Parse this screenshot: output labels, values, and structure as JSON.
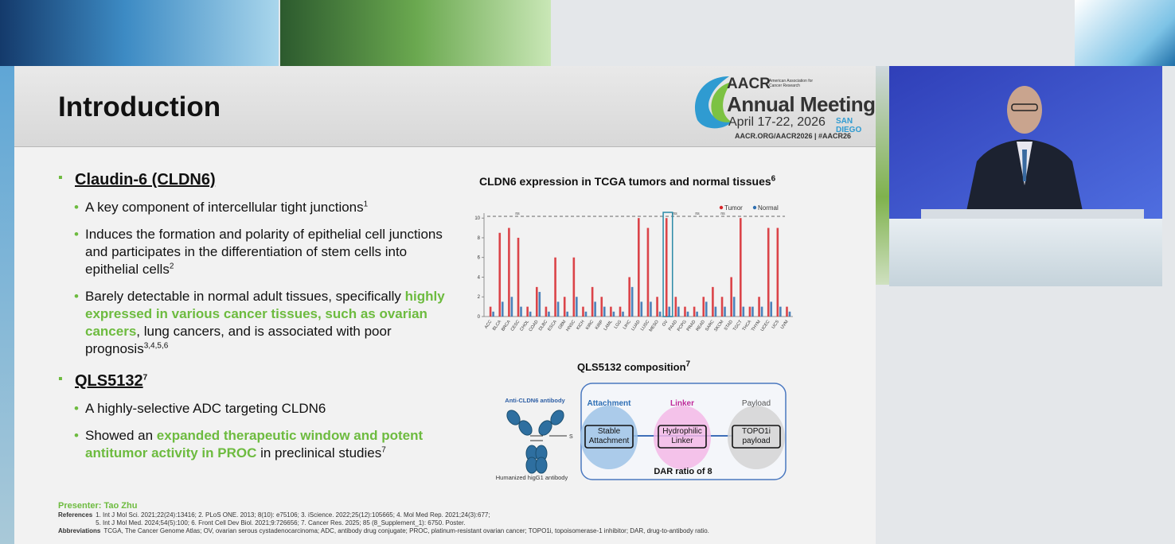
{
  "header": {
    "title": "Introduction"
  },
  "logo": {
    "org": "AACR",
    "org_full": "American Association for Cancer Research",
    "event": "Annual Meeting",
    "dates": "April 17-22, 2026",
    "city": "SAN DIEGO",
    "links": "AACR.ORG/AACR2026 | #AACR26"
  },
  "sections": [
    {
      "heading": [
        {
          "text": "Claudin-6 (CLDN6)"
        }
      ],
      "items": [
        [
          {
            "text": "A key component of intercellular tight junctions"
          },
          {
            "text": "1",
            "style": "sup"
          }
        ],
        [
          {
            "text": "Induces the formation and polarity of epithelial cell junctions and participates in the differentiation of stem cells into epithelial cells"
          },
          {
            "text": "2",
            "style": "sup"
          }
        ],
        [
          {
            "text": "Barely detectable in normal adult tissues, specifically "
          },
          {
            "text": "highly expressed in various cancer tissues, such as ovarian cancers",
            "style": "highlight"
          },
          {
            "text": ", lung cancers, and is associated with poor prognosis"
          },
          {
            "text": "3,4,5,6",
            "style": "sup"
          }
        ]
      ]
    },
    {
      "heading": [
        {
          "text": "QLS5132"
        },
        {
          "text": "7",
          "style": "sup"
        }
      ],
      "items": [
        [
          {
            "text": "A highly-selective ADC targeting CLDN6"
          }
        ],
        [
          {
            "text": "Showed an "
          },
          {
            "text": "expanded therapeutic window and potent antitumor activity in PROC",
            "style": "highlight"
          },
          {
            "text": " in preclinical studies"
          },
          {
            "text": "7",
            "style": "sup"
          }
        ]
      ]
    }
  ],
  "chart_data": {
    "type": "strip",
    "title": "CLDN6 expression in TCGA tumors and normal tissues",
    "title_sup": "6",
    "categories": [
      "ACC",
      "BLCA",
      "BRCA",
      "CESC",
      "CHOL",
      "COAD",
      "DLBC",
      "ESCA",
      "GBM",
      "HNSC",
      "KICH",
      "KIRC",
      "KIRP",
      "LAML",
      "LGG",
      "LIHC",
      "LUAD",
      "LUSC",
      "MESO",
      "OV",
      "PAAD",
      "PCPG",
      "PRAD",
      "READ",
      "SARC",
      "SKCM",
      "STAD",
      "TGCT",
      "THCA",
      "THYM",
      "UCEC",
      "UCS",
      "UVM"
    ],
    "series": [
      {
        "name": "Tumor",
        "color": "#d7262b",
        "values": [
          1,
          8.5,
          9,
          8,
          1,
          3,
          1,
          6,
          2,
          6,
          1,
          3,
          2,
          1,
          1,
          4,
          10,
          9,
          2,
          10,
          2,
          1,
          1,
          2,
          3,
          2,
          4,
          10,
          1,
          2,
          9,
          9,
          1
        ]
      },
      {
        "name": "Normal",
        "color": "#2f6fb0",
        "values": [
          0.5,
          1.5,
          2,
          1,
          0.5,
          2.5,
          0.5,
          1.5,
          0.5,
          2,
          0.5,
          1.5,
          1,
          0.5,
          0.5,
          3,
          1.5,
          1.5,
          0.5,
          1,
          1,
          0.5,
          0.5,
          1.5,
          1,
          1,
          2,
          1,
          1,
          1,
          1.5,
          1,
          0.5
        ]
      }
    ],
    "ylim": [
      0,
      10.5
    ],
    "yticks": [
      0,
      2,
      4,
      6,
      8,
      10
    ],
    "highlight": "OV",
    "annotations": [
      "ns",
      "ns",
      "ns",
      "ns"
    ]
  },
  "composition": {
    "title": "QLS5132 composition",
    "title_sup": "7",
    "antibody_label": "Anti-CLDN6 antibody",
    "antibody_type": "Humanized higG1 antibody",
    "bond": "S",
    "components": [
      {
        "label": "Attachment",
        "box": "Stable Attachment"
      },
      {
        "label": "Linker",
        "box": "Hydrophilic Linker"
      },
      {
        "label": "Payload",
        "box": "TOPO1i payload"
      }
    ],
    "dar": "DAR ratio of 8"
  },
  "footer": {
    "presenter": "Presenter: Tao Zhu",
    "references_label": "References",
    "references": [
      "1. Int J Mol Sci. 2021;22(24):13416; 2. PLoS ONE. 2013; 8(10): e75106; 3. iScience. 2022;25(12):105665; 4. Mol Med Rep. 2021;24(3):677;",
      "5. Int J Mol Med. 2024;54(5):100; 6. Front Cell Dev Biol. 2021;9:726656; 7. Cancer Res. 2025; 85 (8_Supplement_1): 6750. Poster."
    ],
    "abbreviations_label": "Abbreviations",
    "abbreviations": "TCGA, The Cancer Genome Atlas; OV, ovarian serous cystadenocarcinoma; ADC, antibody drug conjugate; PROC, platinum-resistant ovarian cancer; TOPO1i, topoisomerase-1 inhibitor; DAR, drug-to-antibody ratio."
  }
}
